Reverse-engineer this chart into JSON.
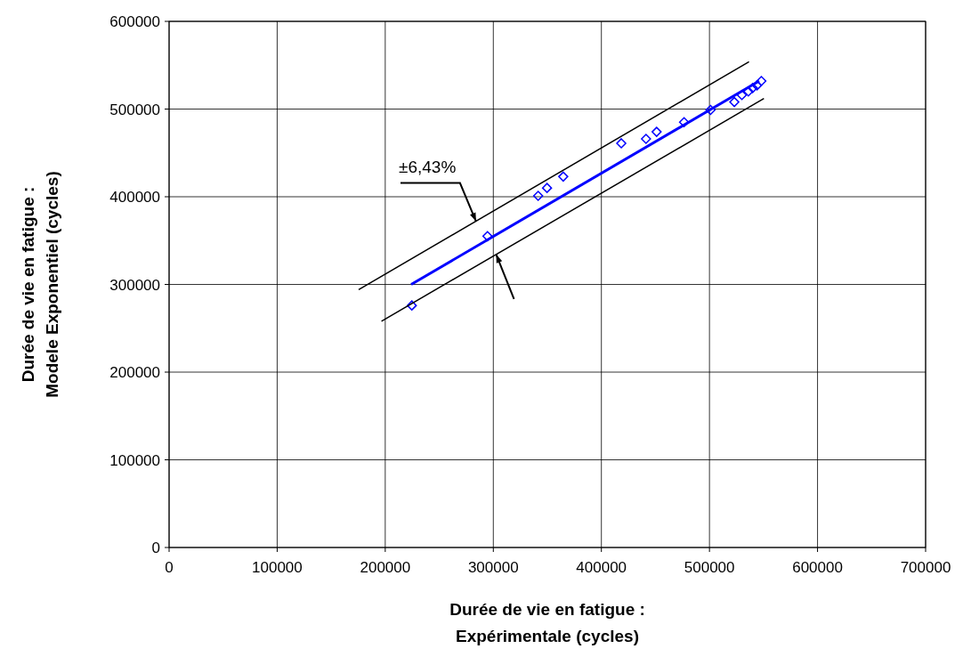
{
  "chart_data": {
    "type": "scatter",
    "xlabel": "Durée de vie en fatigue :\nExpérimentale (cycles)",
    "ylabel": "Durée de vie en fatigue :\nModele Exponentiel (cycles)",
    "xlim": [
      0,
      700000
    ],
    "ylim": [
      0,
      600000
    ],
    "xticks": [
      0,
      100000,
      200000,
      300000,
      400000,
      500000,
      600000,
      700000
    ],
    "yticks": [
      0,
      100000,
      200000,
      300000,
      400000,
      500000,
      600000
    ],
    "grid": true,
    "annotations": [
      {
        "text": "±6,43%",
        "x": 284000,
        "y": 372000
      }
    ],
    "series": [
      {
        "type": "scatter",
        "color": "#0000ff",
        "marker": "diamond",
        "x": [
          224600,
          294600,
          341500,
          349700,
          364700,
          418400,
          441300,
          451100,
          476500,
          501000,
          523000,
          530000,
          536000,
          540000,
          544000,
          548000
        ],
        "values": [
          276000,
          355000,
          401000,
          410000,
          423000,
          461000,
          466000,
          474000,
          485000,
          499000,
          508000,
          516000,
          520000,
          524000,
          527000,
          532000
        ]
      },
      {
        "type": "line",
        "color": "#0000ff",
        "marker": "none",
        "x": [
          224000,
          546000
        ],
        "values": [
          300000,
          532000
        ]
      },
      {
        "type": "line",
        "color": "#000000",
        "marker": "none",
        "x": [
          175400,
          536600
        ],
        "values": [
          294000,
          554000
        ]
      },
      {
        "type": "line",
        "color": "#000000",
        "marker": "none",
        "x": [
          196500,
          550400
        ],
        "values": [
          258000,
          512000
        ]
      }
    ]
  }
}
